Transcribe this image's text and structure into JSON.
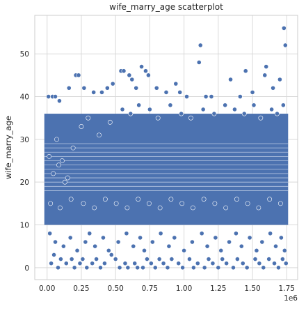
{
  "chart_data": {
    "type": "scatter",
    "title": "wife_marry_age scatterplot",
    "xlabel": "",
    "ylabel": "wife_marry_age",
    "x_offset_label": "1e6",
    "xlim": [
      -90000,
      1830000
    ],
    "ylim": [
      -2.8,
      59
    ],
    "x_ticks": [
      0,
      250000,
      500000,
      750000,
      1000000,
      1250000,
      1500000,
      1750000
    ],
    "x_tick_labels": [
      "0.00",
      "0.25",
      "0.50",
      "0.75",
      "1.00",
      "1.25",
      "1.50",
      "1.75"
    ],
    "y_ticks": [
      0,
      10,
      20,
      30,
      40,
      50
    ],
    "y_tick_labels": [
      "0",
      "10",
      "20",
      "30",
      "40",
      "50"
    ],
    "grid": true,
    "marker_color": "#4c72b0",
    "dense_band": {
      "y_from": 10,
      "y_to": 36,
      "x_from": 0,
      "x_to": 1740000
    },
    "points": [
      [
        10000,
        40
      ],
      [
        40000,
        40
      ],
      [
        60000,
        40
      ],
      [
        90000,
        39
      ],
      [
        160000,
        42
      ],
      [
        210000,
        45
      ],
      [
        230000,
        45
      ],
      [
        270000,
        42
      ],
      [
        340000,
        41
      ],
      [
        400000,
        41
      ],
      [
        440000,
        42
      ],
      [
        480000,
        43
      ],
      [
        540000,
        46
      ],
      [
        560000,
        46
      ],
      [
        600000,
        45
      ],
      [
        620000,
        44
      ],
      [
        650000,
        42
      ],
      [
        690000,
        47
      ],
      [
        720000,
        46
      ],
      [
        740000,
        45
      ],
      [
        800000,
        42
      ],
      [
        870000,
        41
      ],
      [
        940000,
        43
      ],
      [
        970000,
        41
      ],
      [
        1020000,
        40
      ],
      [
        1110000,
        48
      ],
      [
        1120000,
        52
      ],
      [
        1160000,
        40
      ],
      [
        1200000,
        40
      ],
      [
        1340000,
        44
      ],
      [
        1410000,
        40
      ],
      [
        1450000,
        46
      ],
      [
        1500000,
        41
      ],
      [
        1590000,
        45
      ],
      [
        1600000,
        47
      ],
      [
        1650000,
        42
      ],
      [
        1700000,
        44
      ],
      [
        1730000,
        56
      ],
      [
        1740000,
        52
      ],
      [
        30000,
        1
      ],
      [
        50000,
        3
      ],
      [
        80000,
        0
      ],
      [
        100000,
        2
      ],
      [
        140000,
        1
      ],
      [
        180000,
        2
      ],
      [
        200000,
        0
      ],
      [
        240000,
        1
      ],
      [
        260000,
        2
      ],
      [
        290000,
        0
      ],
      [
        330000,
        1
      ],
      [
        360000,
        2
      ],
      [
        390000,
        0
      ],
      [
        420000,
        1
      ],
      [
        470000,
        3
      ],
      [
        500000,
        2
      ],
      [
        530000,
        0
      ],
      [
        570000,
        1
      ],
      [
        590000,
        0
      ],
      [
        640000,
        1
      ],
      [
        660000,
        0
      ],
      [
        700000,
        0
      ],
      [
        730000,
        2
      ],
      [
        760000,
        1
      ],
      [
        790000,
        0
      ],
      [
        820000,
        2
      ],
      [
        850000,
        1
      ],
      [
        880000,
        0
      ],
      [
        910000,
        2
      ],
      [
        960000,
        1
      ],
      [
        990000,
        0
      ],
      [
        1040000,
        2
      ],
      [
        1070000,
        0
      ],
      [
        1100000,
        1
      ],
      [
        1150000,
        0
      ],
      [
        1180000,
        2
      ],
      [
        1210000,
        1
      ],
      [
        1250000,
        0
      ],
      [
        1280000,
        2
      ],
      [
        1310000,
        1
      ],
      [
        1360000,
        0
      ],
      [
        1390000,
        2
      ],
      [
        1430000,
        1
      ],
      [
        1460000,
        0
      ],
      [
        1520000,
        2
      ],
      [
        1550000,
        1
      ],
      [
        1580000,
        0
      ],
      [
        1620000,
        2
      ],
      [
        1660000,
        1
      ],
      [
        1690000,
        0
      ],
      [
        1720000,
        2
      ],
      [
        1745000,
        1
      ],
      [
        20000,
        8
      ],
      [
        60000,
        6
      ],
      [
        120000,
        5
      ],
      [
        170000,
        7
      ],
      [
        220000,
        4
      ],
      [
        280000,
        6
      ],
      [
        310000,
        8
      ],
      [
        350000,
        5
      ],
      [
        410000,
        7
      ],
      [
        450000,
        4
      ],
      [
        520000,
        6
      ],
      [
        580000,
        8
      ],
      [
        630000,
        5
      ],
      [
        680000,
        7
      ],
      [
        710000,
        4
      ],
      [
        770000,
        6
      ],
      [
        830000,
        8
      ],
      [
        890000,
        5
      ],
      [
        930000,
        7
      ],
      [
        1000000,
        4
      ],
      [
        1060000,
        6
      ],
      [
        1130000,
        8
      ],
      [
        1170000,
        5
      ],
      [
        1230000,
        7
      ],
      [
        1270000,
        4
      ],
      [
        1330000,
        6
      ],
      [
        1380000,
        8
      ],
      [
        1420000,
        5
      ],
      [
        1480000,
        7
      ],
      [
        1530000,
        4
      ],
      [
        1570000,
        6
      ],
      [
        1630000,
        8
      ],
      [
        1670000,
        5
      ],
      [
        1710000,
        7
      ],
      [
        1735000,
        4
      ],
      [
        15000,
        26
      ],
      [
        45000,
        22
      ],
      [
        70000,
        30
      ],
      [
        85000,
        24
      ],
      [
        110000,
        25
      ],
      [
        130000,
        20
      ],
      [
        150000,
        21
      ],
      [
        190000,
        28
      ],
      [
        250000,
        33
      ],
      [
        300000,
        35
      ],
      [
        380000,
        31
      ],
      [
        460000,
        34
      ],
      [
        550000,
        37
      ],
      [
        610000,
        36
      ],
      [
        670000,
        38
      ],
      [
        750000,
        37
      ],
      [
        810000,
        35
      ],
      [
        900000,
        38
      ],
      [
        980000,
        36
      ],
      [
        1050000,
        35
      ],
      [
        1140000,
        37
      ],
      [
        1220000,
        36
      ],
      [
        1300000,
        38
      ],
      [
        1370000,
        37
      ],
      [
        1440000,
        36
      ],
      [
        1510000,
        38
      ],
      [
        1560000,
        35
      ],
      [
        1640000,
        37
      ],
      [
        1680000,
        36
      ],
      [
        1725000,
        38
      ],
      [
        25000,
        15
      ],
      [
        95000,
        14
      ],
      [
        175000,
        16
      ],
      [
        265000,
        15
      ],
      [
        345000,
        14
      ],
      [
        425000,
        16
      ],
      [
        505000,
        15
      ],
      [
        585000,
        14
      ],
      [
        665000,
        16
      ],
      [
        745000,
        15
      ],
      [
        825000,
        14
      ],
      [
        905000,
        16
      ],
      [
        985000,
        15
      ],
      [
        1065000,
        14
      ],
      [
        1145000,
        16
      ],
      [
        1225000,
        15
      ],
      [
        1305000,
        14
      ],
      [
        1385000,
        16
      ],
      [
        1465000,
        15
      ],
      [
        1545000,
        14
      ],
      [
        1625000,
        16
      ],
      [
        1705000,
        15
      ]
    ]
  }
}
